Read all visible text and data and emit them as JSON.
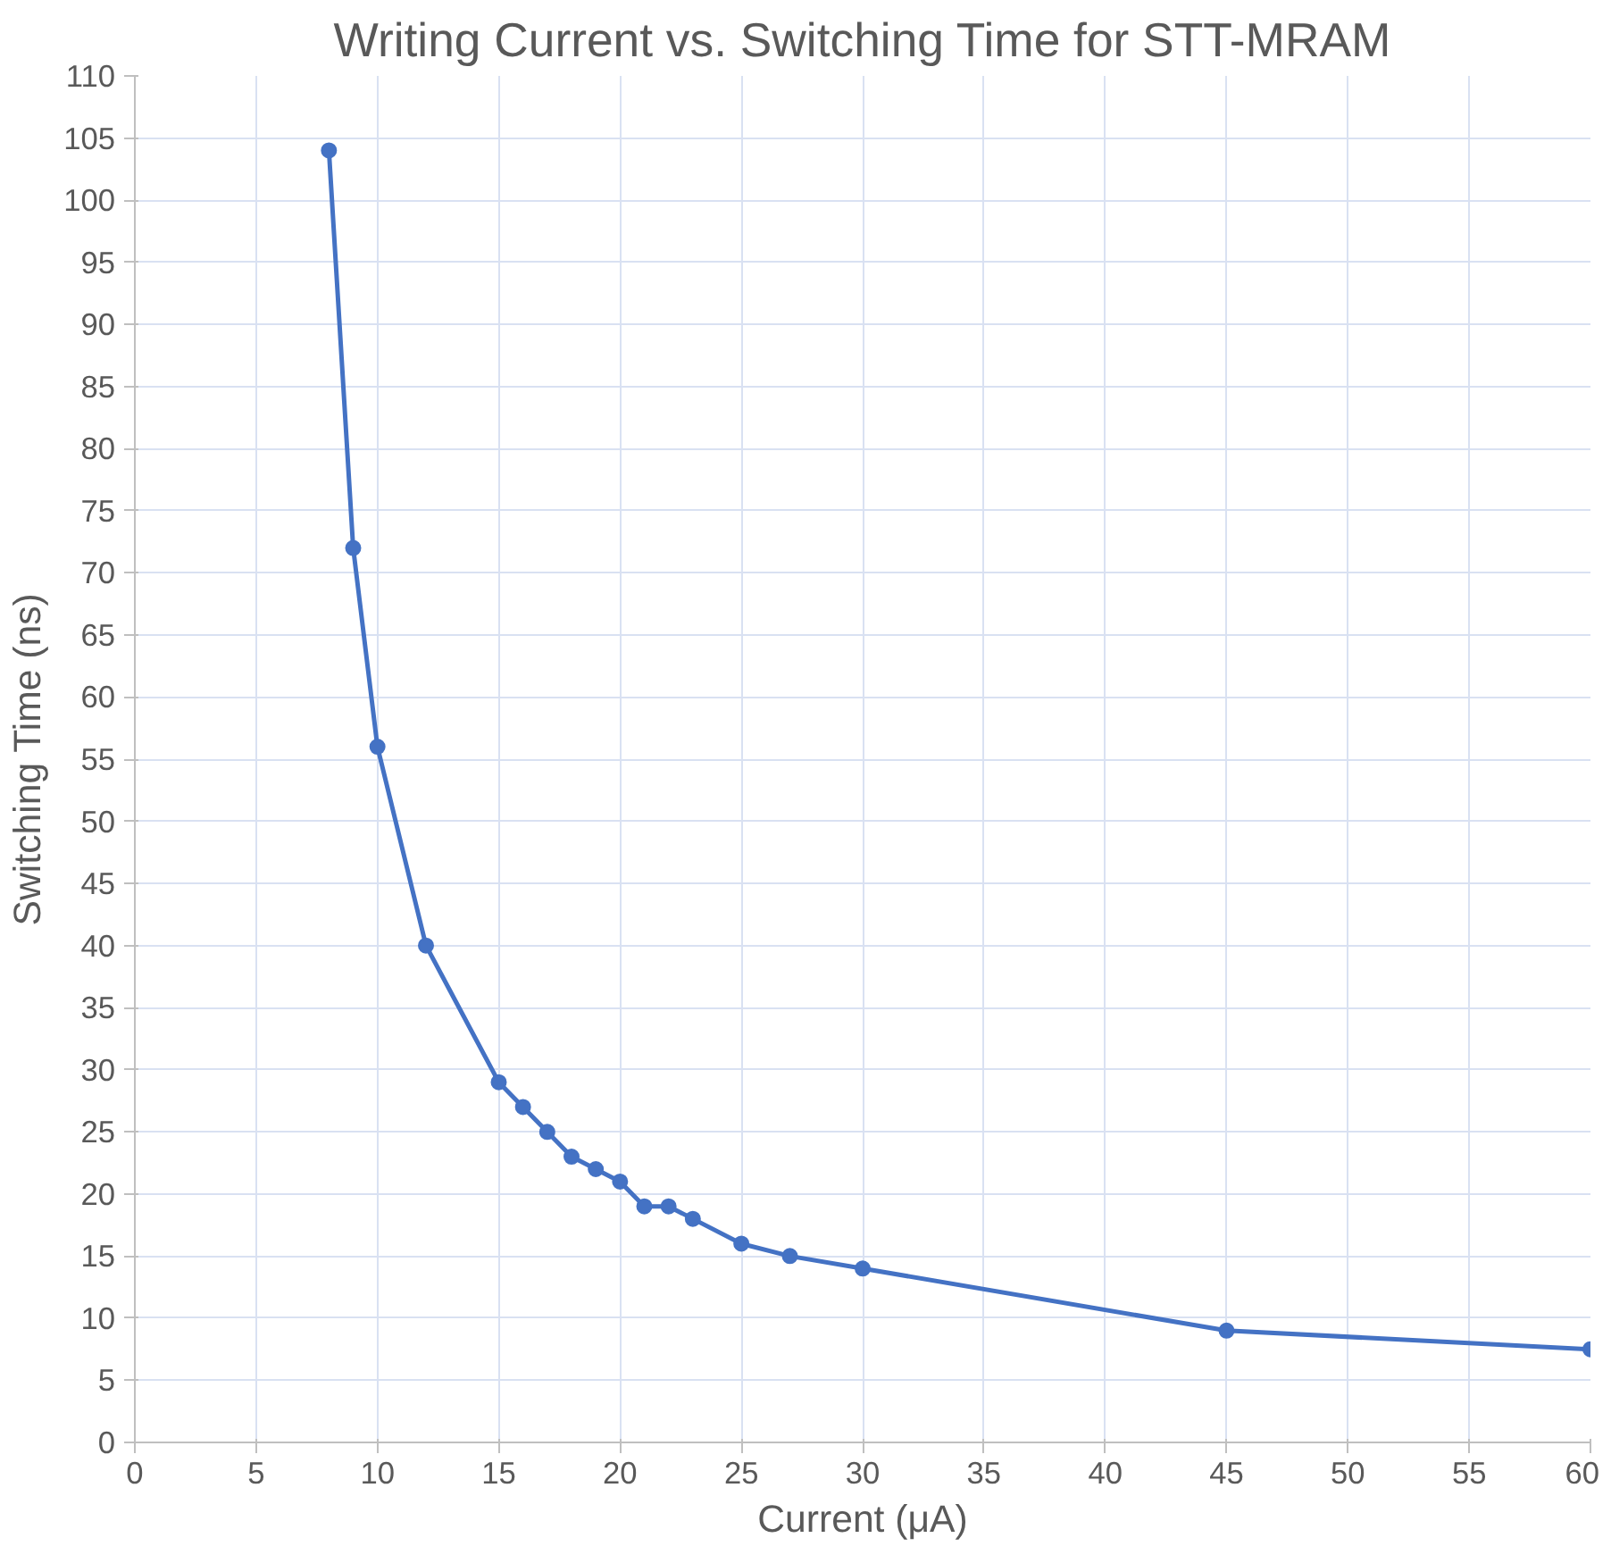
{
  "chart_data": {
    "type": "line",
    "title": "Writing Current vs. Switching Time for STT-MRAM",
    "xlabel": "Current (μA)",
    "ylabel": "Switching Time (ns)",
    "x": [
      8,
      9,
      10,
      12,
      15,
      16,
      17,
      18,
      19,
      20,
      21,
      22,
      23,
      25,
      27,
      30,
      45,
      60
    ],
    "series": [
      {
        "color": "#4472c4",
        "values": [
          104,
          72,
          56,
          40,
          29,
          27,
          25,
          23,
          22,
          21,
          19,
          19,
          18,
          16,
          15,
          14,
          9,
          7.5
        ]
      }
    ],
    "xlim": [
      0,
      60
    ],
    "xticks": [
      0,
      5,
      10,
      15,
      20,
      25,
      30,
      35,
      40,
      45,
      50,
      55,
      60
    ],
    "ylim": [
      0,
      110
    ],
    "yticks": [
      0,
      5,
      10,
      15,
      20,
      25,
      30,
      35,
      40,
      45,
      50,
      55,
      60,
      65,
      70,
      75,
      80,
      85,
      90,
      95,
      100,
      105,
      110
    ],
    "grid": true,
    "marker": "circle",
    "line_style": "solid"
  }
}
